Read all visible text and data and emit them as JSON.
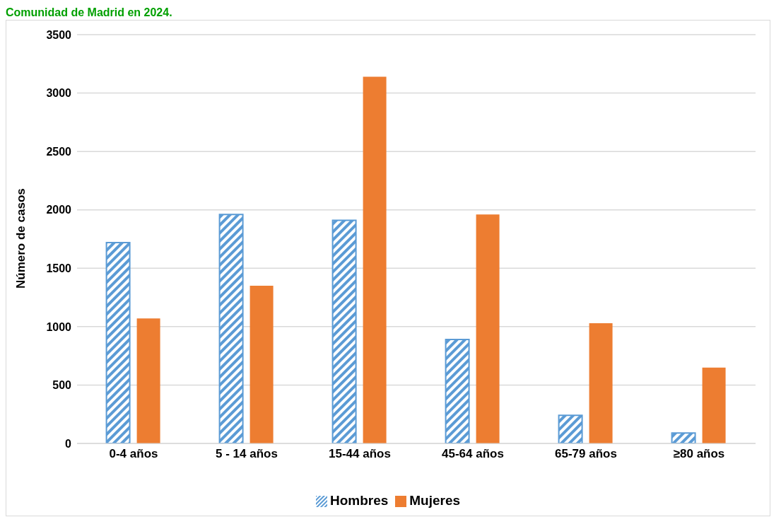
{
  "chart_data": {
    "type": "bar",
    "title": "Comunidad de Madrid en 2024.",
    "ylabel": "Número de casos",
    "categories": [
      "0-4 años",
      "5 - 14 años",
      "15-44 años",
      "45-64 años",
      "65-79 años",
      "≥80 años"
    ],
    "series": [
      {
        "name": "Hombres",
        "color": "#5b9bd5",
        "values": [
          1720,
          1960,
          1910,
          890,
          240,
          90
        ]
      },
      {
        "name": "Mujeres",
        "color": "#ed7d31",
        "values": [
          1070,
          1350,
          3140,
          1960,
          1030,
          650
        ]
      }
    ],
    "ylim": [
      0,
      3500
    ],
    "yticks": [
      0,
      500,
      1000,
      1500,
      2000,
      2500,
      3000,
      3500
    ],
    "grid": "y",
    "legend": "bottom"
  }
}
